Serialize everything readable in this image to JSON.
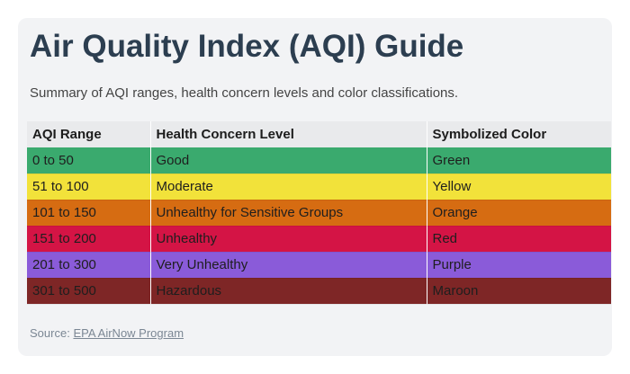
{
  "title": "Air Quality Index (AQI) Guide",
  "subtitle": "Summary of AQI ranges, health concern levels and color classifications.",
  "table": {
    "headers": [
      "AQI Range",
      "Health Concern Level",
      "Symbolized Color"
    ],
    "rows": [
      {
        "range": "0 to 50",
        "level": "Good",
        "color_name": "Green",
        "bg": "#3aaa6e"
      },
      {
        "range": "51 to 100",
        "level": "Moderate",
        "color_name": "Yellow",
        "bg": "#f2e23a"
      },
      {
        "range": "101 to 150",
        "level": "Unhealthy for Sensitive Groups",
        "color_name": "Orange",
        "bg": "#d66c12"
      },
      {
        "range": "151 to 200",
        "level": "Unhealthy",
        "color_name": "Red",
        "bg": "#d41445"
      },
      {
        "range": "201 to 300",
        "level": "Very Unhealthy",
        "color_name": "Purple",
        "bg": "#8a5bd9"
      },
      {
        "range": "301 to 500",
        "level": "Hazardous",
        "color_name": "Maroon",
        "bg": "#7e2626"
      }
    ]
  },
  "source": {
    "label": "Source:",
    "link_text": "EPA AirNow Program"
  }
}
